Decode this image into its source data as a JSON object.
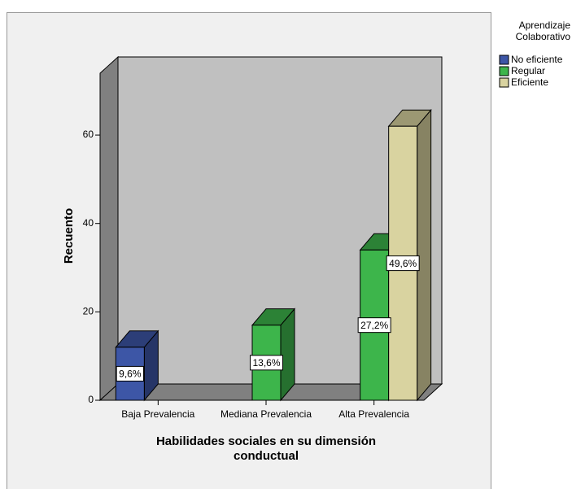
{
  "chart_data": {
    "type": "bar3d",
    "y_label": "Recuento",
    "x_label": [
      "Habilidades sociales en su dimensión",
      "conductual"
    ],
    "legend_title": [
      "Aprendizaje",
      "Colaborativo"
    ],
    "legend": "right",
    "categories": [
      "Baja Prevalencia",
      "Mediana Prevalencia",
      "Alta Prevalencia"
    ],
    "series": [
      {
        "name": "No eficiente",
        "color": "#3d56a6",
        "values": [
          12,
          null,
          null
        ],
        "value_labels": [
          "9,6%",
          null,
          null
        ]
      },
      {
        "name": "Regular",
        "color": "#3db54b",
        "values": [
          null,
          17,
          34
        ],
        "value_labels": [
          null,
          "13,6%",
          "27,2%"
        ]
      },
      {
        "name": "Eficiente",
        "color": "#d9d3a0",
        "values": [
          null,
          null,
          62
        ],
        "value_labels": [
          null,
          null,
          "49,6%"
        ]
      }
    ],
    "ylim": [
      0,
      74
    ],
    "yticks": [
      0,
      20,
      40,
      60
    ]
  }
}
